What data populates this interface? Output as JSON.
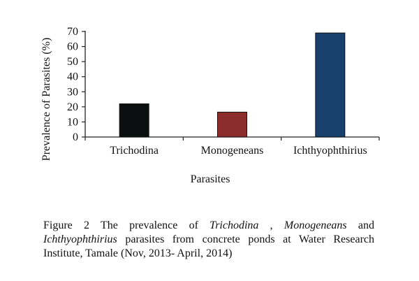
{
  "chart_data": {
    "type": "bar",
    "categories": [
      "Trichodina",
      "Monogeneans",
      "Ichthyophthirius"
    ],
    "values": [
      22,
      16.5,
      69
    ],
    "colors": [
      "#0b0f10",
      "#8b2c2c",
      "#17406c"
    ],
    "ylabel": "Prevalence of Parasites (%)",
    "xlabel": "Parasites",
    "yticks": [
      0,
      10,
      20,
      30,
      40,
      50,
      60,
      70
    ],
    "ylim": [
      0,
      70
    ],
    "grid": false
  },
  "caption": {
    "prefix": "Figure 2 The prevalence of ",
    "term1": "Trichodina",
    "sep1": " , ",
    "term2": "Monogeneans",
    "sep2": " and ",
    "term3": "Ichthyophthirius",
    "suffix": " parasites from concrete ponds at Water Research Institute, Tamale (Nov, 2013- April, 2014)"
  }
}
